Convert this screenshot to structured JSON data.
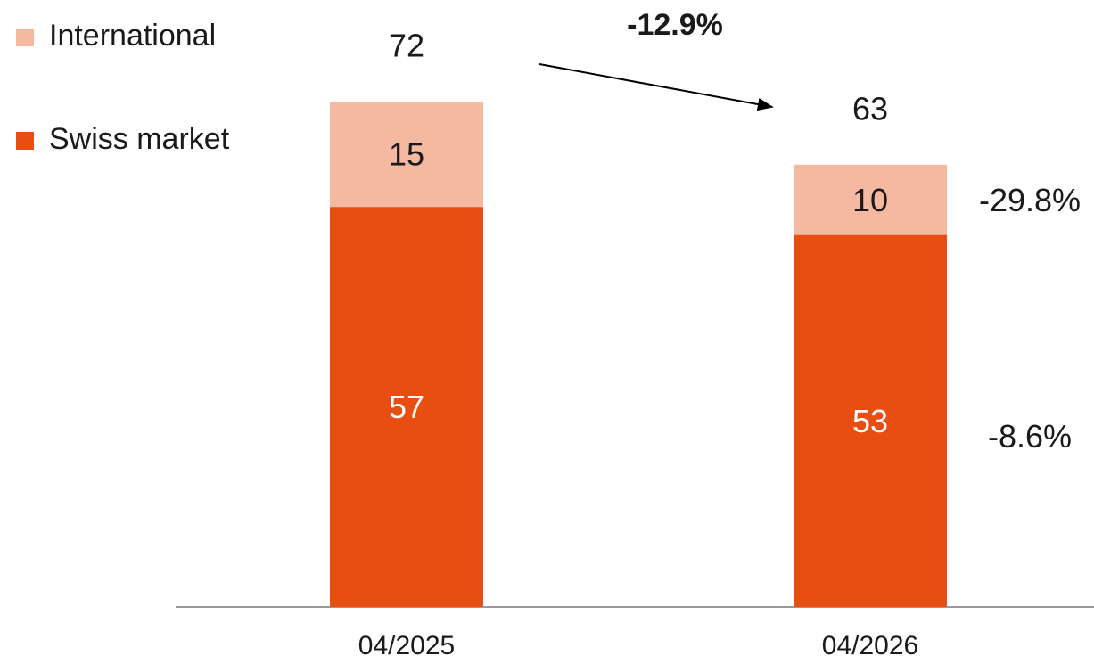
{
  "chart_data": {
    "type": "bar",
    "stacked": true,
    "categories": [
      "04/2025",
      "04/2026"
    ],
    "series": [
      {
        "name": "Swiss market",
        "color": "#e84e12",
        "label_color": "#ffffff",
        "values": [
          57,
          53
        ],
        "change": "-8.6%"
      },
      {
        "name": "International",
        "color": "#f5b8a0",
        "label_color": "#1a1a1a",
        "values": [
          15,
          10
        ],
        "change": "-29.8%"
      }
    ],
    "totals": [
      72,
      63
    ],
    "total_change": "-12.9%",
    "legend": "top-left"
  }
}
